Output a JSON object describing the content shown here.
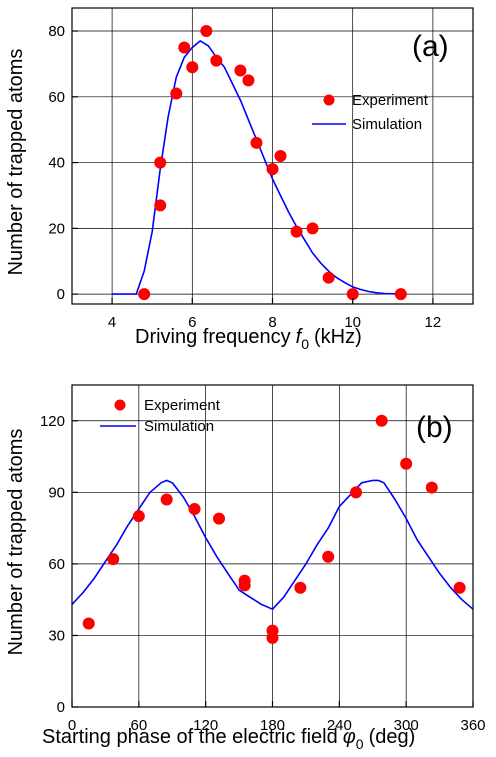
{
  "chart_data": [
    {
      "type": "scatter",
      "panel_label": "(a)",
      "xlabel": "Driving frequency",
      "xlabel_symbol": "f",
      "xlabel_subscript": "0",
      "xlabel_unit": "(kHz)",
      "ylabel": "Number of trapped atoms",
      "xlim": [
        3,
        13
      ],
      "ylim": [
        -3,
        87
      ],
      "xticks": [
        4,
        6,
        8,
        10,
        12
      ],
      "yticks": [
        0,
        20,
        40,
        60,
        80
      ],
      "grid": true,
      "legend_position": "right",
      "series": [
        {
          "name": "Experiment",
          "kind": "points",
          "color": "#ff0000",
          "x": [
            4.8,
            5.2,
            5.2,
            5.6,
            5.8,
            6.0,
            6.35,
            6.6,
            7.2,
            7.4,
            7.6,
            8.0,
            8.2,
            8.6,
            9.0,
            9.4,
            10.0,
            11.2
          ],
          "y": [
            0,
            27,
            40,
            61,
            75,
            69,
            80,
            71,
            68,
            65,
            46,
            38,
            42,
            19,
            20,
            5,
            0,
            0
          ]
        },
        {
          "name": "Simulation",
          "kind": "line",
          "color": "#0000ff",
          "x": [
            4.0,
            4.6,
            4.8,
            5.0,
            5.2,
            5.4,
            5.6,
            5.8,
            6.0,
            6.2,
            6.4,
            6.6,
            6.8,
            7.0,
            7.2,
            7.4,
            7.6,
            7.8,
            8.0,
            8.2,
            8.4,
            8.6,
            8.8,
            9.0,
            9.2,
            9.4,
            9.6,
            9.8,
            10.0,
            10.2,
            10.4,
            10.6,
            10.8,
            11.0,
            11.2
          ],
          "y": [
            0,
            0,
            7,
            19,
            38,
            54,
            66,
            72,
            75,
            77,
            75.5,
            72,
            69,
            64,
            59,
            53,
            47,
            41,
            35,
            30,
            25,
            20.5,
            16.5,
            12.5,
            9.5,
            7,
            5,
            3.5,
            2.2,
            1.4,
            0.8,
            0.4,
            0.2,
            0.1,
            0
          ]
        }
      ]
    },
    {
      "type": "scatter",
      "panel_label": "(b)",
      "xlabel": "Starting phase of the electric field",
      "xlabel_symbol": "φ",
      "xlabel_subscript": "0",
      "xlabel_unit": "(deg)",
      "ylabel": "Number of trapped atoms",
      "xlim": [
        0,
        360
      ],
      "ylim": [
        0,
        135
      ],
      "xticks": [
        0,
        60,
        120,
        180,
        240,
        300,
        360
      ],
      "yticks": [
        0,
        30,
        60,
        90,
        120
      ],
      "grid": true,
      "legend_position": "top-left",
      "series": [
        {
          "name": "Experiment",
          "kind": "points",
          "color": "#ff0000",
          "x": [
            15,
            37,
            60,
            85,
            110,
            132,
            155,
            155,
            180,
            180,
            205,
            230,
            255,
            278,
            300,
            323,
            348
          ],
          "y": [
            35,
            62,
            80,
            87,
            83,
            79,
            51,
            53,
            32,
            29,
            50,
            63,
            90,
            120,
            102,
            92,
            50
          ]
        },
        {
          "name": "Simulation",
          "kind": "line",
          "color": "#0000ff",
          "x": [
            0,
            10,
            20,
            30,
            40,
            50,
            60,
            70,
            80,
            85,
            90,
            100,
            110,
            120,
            130,
            140,
            150,
            160,
            170,
            180,
            190,
            200,
            210,
            220,
            230,
            240,
            250,
            260,
            270,
            275,
            280,
            290,
            300,
            310,
            320,
            330,
            340,
            350,
            360
          ],
          "y": [
            43,
            48,
            54,
            61,
            68,
            76,
            83,
            90,
            94,
            95,
            94,
            88,
            80,
            71,
            63,
            56,
            49,
            46,
            43,
            41,
            46,
            53,
            60,
            68,
            75,
            84,
            89,
            94,
            95,
            95,
            94,
            87,
            79,
            70,
            63,
            56,
            50,
            45,
            41
          ]
        }
      ]
    }
  ]
}
